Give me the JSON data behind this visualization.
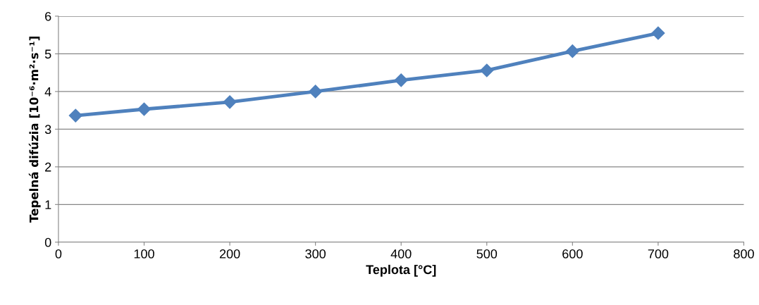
{
  "chart_data": {
    "type": "line",
    "xlabel": "Teplota [°C]",
    "ylabel": "Tepelná difúzia [10⁻⁶·m²·s⁻¹]",
    "x": [
      20,
      100,
      200,
      300,
      400,
      500,
      600,
      700
    ],
    "series": [
      {
        "color": "#4f81bd",
        "values": [
          3.36,
          3.53,
          3.72,
          4.0,
          4.3,
          4.56,
          5.07,
          5.55
        ]
      }
    ],
    "xlim": [
      0,
      800
    ],
    "xticks": [
      0,
      100,
      200,
      300,
      400,
      500,
      600,
      700,
      800
    ],
    "ylim": [
      0,
      6
    ],
    "yticks": [
      0,
      1,
      2,
      3,
      4,
      5,
      6
    ],
    "grid": "y",
    "marker": "diamond",
    "line_style": "solid",
    "legend": false
  }
}
